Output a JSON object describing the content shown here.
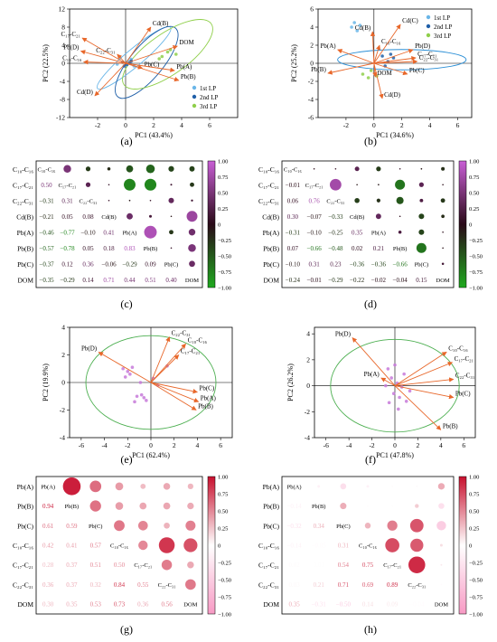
{
  "figure": {
    "subfigure_labels": [
      "(a)",
      "(b)",
      "(c)",
      "(d)",
      "(e)",
      "(f)",
      "(g)",
      "(h)"
    ]
  },
  "chart_data": [
    {
      "id": "a",
      "type": "scatter",
      "xlabel": "PC1 (43.4%)",
      "ylabel": "PC2 (22.5%)",
      "xlim": [
        -4,
        8
      ],
      "ylim": [
        -12,
        12
      ],
      "xticks": [
        -2,
        0,
        2,
        4,
        6
      ],
      "yticks": [
        -12,
        -8,
        -4,
        0,
        4,
        8,
        12
      ],
      "legend": {
        "placement": "bottom-right",
        "entries": [
          "1st LP",
          "2nd LP",
          "3rd LP"
        ]
      },
      "series": [
        {
          "name": "1st LP",
          "color": "#6ab6e8",
          "x": [
            -0.4,
            0.2,
            0.6,
            -0.6,
            0.4
          ],
          "y": [
            1.2,
            0.4,
            -0.6,
            -0.2,
            0.9
          ]
        },
        {
          "name": "2nd LP",
          "color": "#1f5fa8",
          "x": [
            -0.2,
            0.1,
            0.4,
            0.3,
            -0.1
          ],
          "y": [
            0.2,
            -0.3,
            0.5,
            0.1,
            -0.6
          ]
        },
        {
          "name": "3rd LP",
          "color": "#8fcf4a",
          "x": [
            2.6,
            3.0,
            3.6,
            3.2,
            2.4
          ],
          "y": [
            1.5,
            2.5,
            2.0,
            3.0,
            1.0
          ]
        }
      ],
      "vectors": [
        {
          "label": "Cd(B)",
          "x": 1.8,
          "y": 8.0
        },
        {
          "label": "C₁₇-C₂₁",
          "x": -3.1,
          "y": 5.6
        },
        {
          "label": "Pb(D)",
          "x": -3.2,
          "y": 2.7
        },
        {
          "label": "C₁₀-C₁₆",
          "x": -3.0,
          "y": 0.3
        },
        {
          "label": "C₂₂-C₃₁",
          "x": -0.6,
          "y": 2.0
        },
        {
          "label": "DOM",
          "x": 3.7,
          "y": 3.8
        },
        {
          "label": "Pb(C)",
          "x": 1.2,
          "y": -1.1
        },
        {
          "label": "Pb(A)",
          "x": 3.5,
          "y": -1.6
        },
        {
          "label": "Pb(B)",
          "x": 3.8,
          "y": -3.8
        },
        {
          "label": "Cd(D)",
          "x": -2.2,
          "y": -7.2
        }
      ],
      "ellipses": [
        {
          "series": "1st LP",
          "cx": 0.6,
          "cy": 1.2,
          "rx": 3.4,
          "ry": 4.2,
          "angle": -40,
          "color": "#6ab6e8"
        },
        {
          "series": "2nd LP",
          "cx": 1.5,
          "cy": 0.2,
          "rx": 3.2,
          "ry": 8.0,
          "angle": -50,
          "color": "#1f5fa8"
        },
        {
          "series": "3rd LP",
          "cx": 3.0,
          "cy": 2.0,
          "rx": 3.8,
          "ry": 10.0,
          "angle": -35,
          "color": "#8fcf4a"
        }
      ]
    },
    {
      "id": "b",
      "type": "scatter",
      "xlabel": "PC1 (34.6%)",
      "ylabel": "PC2 (25.2%)",
      "xlim": [
        -4,
        7
      ],
      "ylim": [
        -6,
        6
      ],
      "xticks": [
        -2,
        0,
        2,
        4,
        6
      ],
      "yticks": [
        -6,
        -4,
        -2,
        0,
        2,
        4,
        6
      ],
      "legend": {
        "placement": "top-right",
        "entries": [
          "1st LP",
          "2nd LP",
          "3rd LP"
        ]
      },
      "series": [
        {
          "name": "1st LP",
          "color": "#6ab6e8",
          "x": [
            -1.6,
            -1.4,
            -1.2,
            -1.0
          ],
          "y": [
            4.0,
            4.5,
            3.6,
            4.2
          ]
        },
        {
          "name": "2nd LP",
          "color": "#1f5fa8",
          "x": [
            0.6,
            1.0,
            1.4,
            0.8,
            1.2
          ],
          "y": [
            0.8,
            0.2,
            0.6,
            -0.3,
            1.0
          ]
        },
        {
          "name": "3rd LP",
          "color": "#8fcf4a",
          "x": [
            -0.8,
            -0.4,
            -0.2,
            0.2
          ],
          "y": [
            -1.2,
            -1.6,
            -0.8,
            -1.4
          ]
        }
      ],
      "vectors": [
        {
          "label": "Cd(B)",
          "x": -0.1,
          "y": 3.5
        },
        {
          "label": "Cd(C)",
          "x": 1.9,
          "y": 4.3
        },
        {
          "label": "C₁₀-C₁₆",
          "x": 0.4,
          "y": 2.0
        },
        {
          "label": "Pb(D)",
          "x": 2.8,
          "y": 1.5
        },
        {
          "label": "C₁₇-C₂₁",
          "x": 3.0,
          "y": 0.6
        },
        {
          "label": "C₂₂-C₃₁",
          "x": 3.1,
          "y": 0.2
        },
        {
          "label": "Pb(A)",
          "x": -2.6,
          "y": 1.5
        },
        {
          "label": "Pb(B)",
          "x": -3.3,
          "y": -1.1
        },
        {
          "label": "DOM",
          "x": 0.1,
          "y": -1.5
        },
        {
          "label": "Pb(C)",
          "x": 2.4,
          "y": -1.2
        },
        {
          "label": "Cd(D)",
          "x": 0.6,
          "y": -3.9
        }
      ],
      "ellipses": [
        {
          "series": "1st LP",
          "cx": 2.0,
          "cy": 0.4,
          "rx": 4.6,
          "ry": 2.5,
          "angle": 0,
          "color": "#2b8fd6"
        }
      ]
    },
    {
      "id": "c",
      "type": "heatmap",
      "variables": [
        "C₁₀-C₁₆",
        "C₁₇-C₂₁",
        "C₂₂-C₃₁",
        "Cd(B)",
        "Pb(A)",
        "Pb(B)",
        "Pb(C)",
        "DOM"
      ],
      "lower_labels": [
        [],
        [
          "0.50"
        ],
        [
          "−0.31",
          "0.31"
        ],
        [
          "−0.21",
          "0.05",
          "0.08"
        ],
        [
          "−0.46",
          "−0.77",
          "−0.10",
          "0.41"
        ],
        [
          "−0.57",
          "−0.78",
          "0.05",
          "0.18",
          "0.83"
        ],
        [
          "−0.37",
          "0.12",
          "0.36",
          "−0.06",
          "−0.29",
          "0.09"
        ],
        [
          "−0.35",
          "−0.29",
          "0.14",
          "0.71",
          "0.44",
          "0.51",
          "0.40"
        ]
      ],
      "matrix": [
        [
          1.0,
          0.5,
          -0.31,
          -0.21,
          -0.46,
          -0.57,
          -0.37,
          -0.35
        ],
        [
          0.5,
          1.0,
          0.31,
          0.05,
          -0.77,
          -0.78,
          0.12,
          -0.29
        ],
        [
          -0.31,
          0.31,
          1.0,
          0.08,
          -0.1,
          0.05,
          0.36,
          0.14
        ],
        [
          -0.21,
          0.05,
          0.08,
          1.0,
          0.41,
          0.18,
          -0.06,
          0.71
        ],
        [
          -0.46,
          -0.77,
          -0.1,
          0.41,
          1.0,
          0.83,
          -0.29,
          0.44
        ],
        [
          -0.57,
          -0.78,
          0.05,
          0.18,
          0.83,
          1.0,
          0.09,
          0.51
        ],
        [
          -0.37,
          0.12,
          0.36,
          -0.06,
          -0.29,
          0.09,
          1.0,
          0.4
        ],
        [
          -0.35,
          -0.29,
          0.14,
          0.71,
          0.44,
          0.51,
          0.4,
          1.0
        ]
      ],
      "colorbar": {
        "min": -1.0,
        "max": 1.0,
        "ticks": [
          "1.00",
          "0.75",
          "0.50",
          "0.25",
          "0",
          "−0.25",
          "−0.50",
          "−0.75",
          "−1.00"
        ],
        "colors": [
          "#1faa1f",
          "#2a0a18",
          "#c95fd6"
        ]
      }
    },
    {
      "id": "d",
      "type": "heatmap",
      "variables": [
        "C₁₀-C₁₆",
        "C₁₇-C₂₁",
        "C₂₂-C₃₁",
        "Cd(B)",
        "Pb(A)",
        "Pb(B)",
        "Pb(C)",
        "DOM"
      ],
      "lower_labels": [
        [],
        [
          "−0.01"
        ],
        [
          "0.06",
          "0.76"
        ],
        [
          "0.30",
          "−0.07",
          "−0.33"
        ],
        [
          "−0.31",
          "−0.10",
          "−0.25",
          "0.35"
        ],
        [
          "0.07",
          "−0.66",
          "−0.48",
          "0.02",
          "0.21"
        ],
        [
          "−0.10",
          "0.31",
          "0.23",
          "−0.36",
          "−0.36",
          "−0.66"
        ],
        [
          "−0.24",
          "−0.01",
          "−0.29",
          "−0.22",
          "−0.02",
          "−0.04",
          "0.15"
        ]
      ],
      "matrix": [
        [
          1.0,
          -0.01,
          0.06,
          0.3,
          -0.31,
          0.07,
          -0.1,
          -0.24
        ],
        [
          -0.01,
          1.0,
          0.76,
          -0.07,
          -0.1,
          -0.66,
          0.31,
          -0.01
        ],
        [
          0.06,
          0.76,
          1.0,
          -0.33,
          -0.25,
          -0.48,
          0.23,
          -0.29
        ],
        [
          0.3,
          -0.07,
          -0.33,
          1.0,
          0.35,
          0.02,
          -0.36,
          -0.22
        ],
        [
          -0.31,
          -0.1,
          -0.25,
          0.35,
          1.0,
          0.21,
          -0.36,
          -0.02
        ],
        [
          0.07,
          -0.66,
          -0.48,
          0.02,
          0.21,
          1.0,
          -0.66,
          -0.04
        ],
        [
          -0.1,
          0.31,
          0.23,
          -0.36,
          -0.36,
          -0.66,
          1.0,
          0.15
        ],
        [
          -0.24,
          -0.01,
          -0.29,
          -0.22,
          -0.02,
          -0.04,
          0.15,
          1.0
        ]
      ],
      "colorbar": {
        "min": -1.0,
        "max": 1.0,
        "ticks": [
          "1.00",
          "0.75",
          "0.50",
          "0.25",
          "0",
          "−0.25",
          "−0.50",
          "−0.75",
          "−1.00"
        ],
        "colors": [
          "#1faa1f",
          "#2a0a18",
          "#c95fd6"
        ]
      }
    },
    {
      "id": "e",
      "type": "scatter",
      "xlabel": "PC1 (62.4%)",
      "ylabel": "PC2 (19.9%)",
      "xlim": [
        -7,
        7
      ],
      "ylim": [
        -4,
        4
      ],
      "xticks": [
        -6,
        -4,
        -2,
        0,
        2,
        4,
        6
      ],
      "yticks": [
        -4,
        -2,
        0,
        2,
        4
      ],
      "series": [
        {
          "name": "samples",
          "color": "#c77ad9",
          "x": [
            -2.4,
            -2.0,
            -1.6,
            -2.2,
            -1.8,
            -0.8,
            -0.6,
            -1.2,
            -0.4,
            0.2,
            0.6,
            1.4,
            -1.4,
            -0.9
          ],
          "y": [
            1.0,
            0.8,
            1.1,
            0.4,
            0.6,
            -0.9,
            -1.1,
            -1.0,
            -1.3,
            0.3,
            -0.2,
            1.2,
            -1.4,
            0.0
          ]
        }
      ],
      "vectors": [
        {
          "label": "C₂₂-C₃₁",
          "x": 1.6,
          "y": 3.3
        },
        {
          "label": "C₁₀-C₁₆",
          "x": 3.0,
          "y": 2.8
        },
        {
          "label": "C₁₇-C₂₁",
          "x": 2.4,
          "y": 2.0
        },
        {
          "label": "Pb(D)",
          "x": -4.5,
          "y": 2.2
        },
        {
          "label": "Pb(C)",
          "x": 4.0,
          "y": -0.7
        },
        {
          "label": "Pb(A)",
          "x": 4.1,
          "y": -1.4
        },
        {
          "label": "Pb(B)",
          "x": 3.9,
          "y": -2.0
        }
      ],
      "circle": {
        "r": 5.6,
        "color": "#4caf50"
      }
    },
    {
      "id": "f",
      "type": "scatter",
      "xlabel": "PC1 (47.8%)",
      "ylabel": "PC2 (26.2%)",
      "xlim": [
        -7,
        7
      ],
      "ylim": [
        -4,
        4.5
      ],
      "xticks": [
        -6,
        -4,
        -2,
        0,
        2,
        4,
        6
      ],
      "yticks": [
        -4,
        -2,
        0,
        2,
        4
      ],
      "series": [
        {
          "name": "samples",
          "color": "#c77ad9",
          "x": [
            -0.6,
            -0.3,
            0.2,
            0.6,
            -0.1,
            0.4,
            1.0,
            -0.8,
            0.8,
            1.3,
            0.0,
            -0.5,
            0.3
          ],
          "y": [
            1.3,
            0.6,
            0.2,
            -0.1,
            -0.6,
            -0.9,
            -1.2,
            0.0,
            0.9,
            -0.4,
            1.6,
            -1.3,
            -1.8
          ]
        }
      ],
      "vectors": [
        {
          "label": "Pb(D)",
          "x": -3.7,
          "y": 3.7
        },
        {
          "label": "C₁₀-C₁₆",
          "x": 4.5,
          "y": 2.6
        },
        {
          "label": "C₁₇-C₂₁",
          "x": 5.0,
          "y": 1.8
        },
        {
          "label": "C₂₂-C₃₁",
          "x": 5.1,
          "y": 0.5
        },
        {
          "label": "Pb(A)",
          "x": -1.2,
          "y": 0.6
        },
        {
          "label": "Pb(C)",
          "x": 5.1,
          "y": -0.9
        },
        {
          "label": "Pb(B)",
          "x": 4.0,
          "y": -3.4
        }
      ],
      "circle": {
        "r": 5.6,
        "color": "#4caf50"
      }
    },
    {
      "id": "g",
      "type": "heatmap",
      "variables": [
        "Pb(A)",
        "Pb(B)",
        "Pb(C)",
        "C₁₀-C₁₆",
        "C₁₇-C₂₁",
        "C₂₂-C₃₁",
        "DOM"
      ],
      "lower_labels": [
        [],
        [
          "0.94"
        ],
        [
          "0.61",
          "0.59"
        ],
        [
          "0.42",
          "0.41",
          "0.57"
        ],
        [
          "0.28",
          "0.37",
          "0.51",
          "0.50"
        ],
        [
          "0.36",
          "0.37",
          "0.32",
          "0.84",
          "0.55"
        ],
        [
          "0.30",
          "0.35",
          "0.53",
          "0.73",
          "0.36",
          "0.56"
        ]
      ],
      "matrix": [
        [
          1.0,
          0.94,
          0.61,
          0.42,
          0.28,
          0.36,
          0.3
        ],
        [
          0.94,
          1.0,
          0.59,
          0.41,
          0.37,
          0.37,
          0.35
        ],
        [
          0.61,
          0.59,
          1.0,
          0.57,
          0.51,
          0.32,
          0.53
        ],
        [
          0.42,
          0.41,
          0.57,
          1.0,
          0.5,
          0.84,
          0.73
        ],
        [
          0.28,
          0.37,
          0.51,
          0.5,
          1.0,
          0.55,
          0.36
        ],
        [
          0.36,
          0.37,
          0.32,
          0.84,
          0.55,
          1.0,
          0.56
        ],
        [
          0.3,
          0.35,
          0.53,
          0.73,
          0.36,
          0.56,
          1.0
        ]
      ],
      "colorbar": {
        "min": -1.0,
        "max": 1.0,
        "ticks": [
          "1.00",
          "0.75",
          "0.50",
          "0.25",
          "0",
          "−0.25",
          "−0.50",
          "−0.75",
          "−1.00"
        ],
        "colors": [
          "#f79ac4",
          "#ffffff",
          "#c8102e"
        ]
      }
    },
    {
      "id": "h",
      "type": "heatmap",
      "variables": [
        "Pb(A)",
        "Pb(B)",
        "Pb(C)",
        "C₁₀-C₁₆",
        "C₁₇-C₂₁",
        "C₂₂-C₃₁",
        "DOM"
      ],
      "lower_labels": [
        [],
        [
          "−0.14"
        ],
        [
          "−0.32",
          "0.34"
        ],
        [
          "−0.14",
          "−0.05",
          "0.31"
        ],
        [
          "0.02",
          "0.01",
          "0.54",
          "0.75"
        ],
        [
          "0.03",
          "0.21",
          "0.71",
          "0.69",
          "0.89"
        ],
        [
          "0.35",
          "−0.31",
          "−0.50",
          "0.14",
          "0.09",
          "−0.04"
        ]
      ],
      "matrix": [
        [
          1.0,
          -0.14,
          -0.32,
          -0.14,
          0.02,
          0.03,
          0.35
        ],
        [
          -0.14,
          1.0,
          0.34,
          -0.05,
          0.01,
          0.21,
          -0.31
        ],
        [
          -0.32,
          0.34,
          1.0,
          0.31,
          0.54,
          0.71,
          -0.5
        ],
        [
          -0.14,
          -0.05,
          0.31,
          1.0,
          0.75,
          0.69,
          0.14
        ],
        [
          0.02,
          0.01,
          0.54,
          0.75,
          1.0,
          0.89,
          0.09
        ],
        [
          0.03,
          0.21,
          0.71,
          0.69,
          0.89,
          1.0,
          -0.04
        ],
        [
          0.35,
          -0.31,
          -0.5,
          0.14,
          0.09,
          -0.04,
          1.0
        ]
      ],
      "colorbar": {
        "min": -1.0,
        "max": 1.0,
        "ticks": [
          "1.00",
          "0.75",
          "0.50",
          "0.25",
          "0",
          "−0.25",
          "−0.50",
          "−0.75",
          "−1.00"
        ],
        "colors": [
          "#f79ac4",
          "#ffffff",
          "#c8102e"
        ]
      }
    }
  ]
}
